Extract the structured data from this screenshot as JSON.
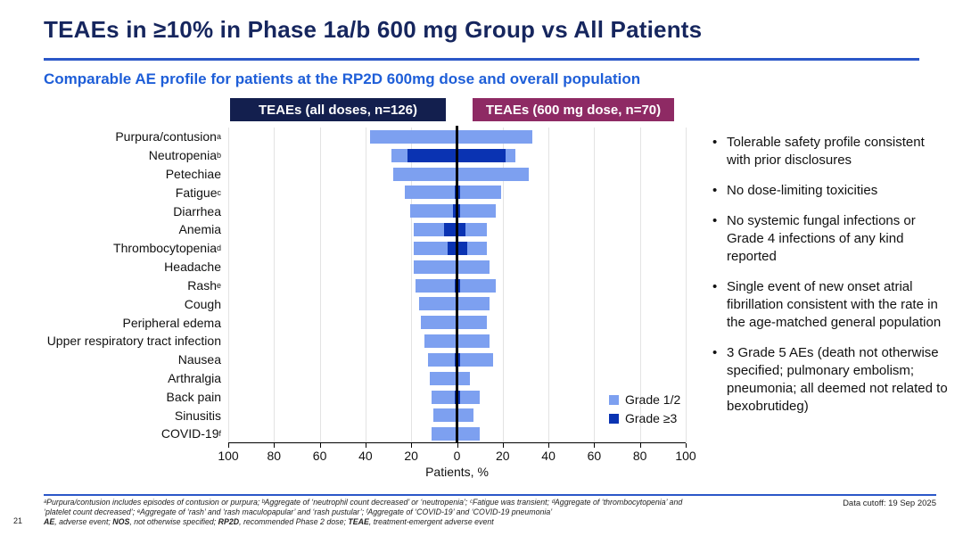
{
  "slide": {
    "title": "TEAEs in ≥10% in Phase 1a/b 600 mg Group vs All Patients",
    "subtitle": "Comparable AE profile for patients at the RP2D 600mg dose and overall population",
    "page_number": "21",
    "data_cutoff": "Data cutoff: 19 Sep 2025"
  },
  "colors": {
    "title_navy": "#16265E",
    "rule_blue": "#2B57C8",
    "subtitle_blue": "#1E5ED8",
    "header_navy": "#131F4E",
    "header_maroon": "#8E2A64",
    "grade12_blue": "#7DA0F0",
    "grade3_blue": "#0A33B2",
    "gridline_gray": "#E3E3E3"
  },
  "chart_data": {
    "type": "bar",
    "subtype": "butterfly",
    "xlabel": "Patients, %",
    "axis_ticks": [
      100,
      80,
      60,
      40,
      20,
      0,
      20,
      40,
      60,
      80,
      100
    ],
    "xlim_each_side": [
      0,
      100
    ],
    "grid": true,
    "series_left_header": "TEAEs (all doses, n=126)",
    "series_right_header": "TEAEs (600 mg dose, n=70)",
    "legend": [
      {
        "label": "Grade 1/2",
        "key": "grade12"
      },
      {
        "label": "Grade ≥3",
        "key": "grade3"
      }
    ],
    "rows": [
      {
        "label": "Purpura/contusion",
        "sup": "a",
        "left_total": 38.1,
        "left_grade3": 0,
        "right_total": 32.9,
        "right_grade3": 0
      },
      {
        "label": "Neutropenia",
        "sup": "b",
        "left_total": 28.6,
        "left_grade3": 21.5,
        "right_total": 25.7,
        "right_grade3": 21.4
      },
      {
        "label": "Petechiae",
        "sup": "",
        "left_total": 27.8,
        "left_grade3": 0,
        "right_total": 31.4,
        "right_grade3": 0
      },
      {
        "label": "Fatigue",
        "sup": "c",
        "left_total": 23.0,
        "left_grade3": 1.0,
        "right_total": 19.2,
        "right_grade3": 1.5
      },
      {
        "label": "Diarrhea",
        "sup": "",
        "left_total": 20.6,
        "left_grade3": 1.6,
        "right_total": 17.1,
        "right_grade3": 1.5
      },
      {
        "label": "Anemia",
        "sup": "",
        "left_total": 19.0,
        "left_grade3": 5.5,
        "right_total": 12.9,
        "right_grade3": 3.8
      },
      {
        "label": "Thrombocytopenia",
        "sup": "d",
        "left_total": 19.0,
        "left_grade3": 4.0,
        "right_total": 12.9,
        "right_grade3": 4.3
      },
      {
        "label": "Headache",
        "sup": "",
        "left_total": 19.0,
        "left_grade3": 0,
        "right_total": 14.3,
        "right_grade3": 0
      },
      {
        "label": "Rash",
        "sup": "e",
        "left_total": 18.3,
        "left_grade3": 0.8,
        "right_total": 17.1,
        "right_grade3": 1.5
      },
      {
        "label": "Cough",
        "sup": "",
        "left_total": 16.7,
        "left_grade3": 0,
        "right_total": 14.3,
        "right_grade3": 0
      },
      {
        "label": "Peripheral edema",
        "sup": "",
        "left_total": 15.9,
        "left_grade3": 0,
        "right_total": 12.9,
        "right_grade3": 0
      },
      {
        "label": "Upper respiratory tract infection",
        "sup": "",
        "left_total": 14.3,
        "left_grade3": 0,
        "right_total": 14.3,
        "right_grade3": 0
      },
      {
        "label": "Nausea",
        "sup": "",
        "left_total": 12.7,
        "left_grade3": 0.8,
        "right_total": 15.7,
        "right_grade3": 1.5
      },
      {
        "label": "Arthralgia",
        "sup": "",
        "left_total": 11.9,
        "left_grade3": 0,
        "right_total": 5.7,
        "right_grade3": 0
      },
      {
        "label": "Back pain",
        "sup": "",
        "left_total": 11.1,
        "left_grade3": 0.8,
        "right_total": 10.0,
        "right_grade3": 1.5
      },
      {
        "label": "Sinusitis",
        "sup": "",
        "left_total": 10.3,
        "left_grade3": 0,
        "right_total": 7.1,
        "right_grade3": 0
      },
      {
        "label": "COVID-19",
        "sup": "f",
        "left_total": 11.1,
        "left_grade3": 0,
        "right_total": 10.0,
        "right_grade3": 0
      }
    ]
  },
  "bullets": [
    "Tolerable safety profile consistent with prior disclosures",
    "No dose-limiting toxicities",
    "No systemic fungal infections or Grade 4 infections of any kind reported",
    "Single event of new onset atrial fibrillation consistent with the rate in the age-matched general population",
    "3 Grade 5 AEs (death not otherwise specified; pulmonary embolism; pneumonia; all deemed not related to bexobrutideg)"
  ],
  "footnotes": {
    "line1": "ᵃPurpura/contusion includes episodes of contusion or purpura; ᵇAggregate of ‘neutrophil count decreased’ or ‘neutropenia’; ᶜFatigue was transient; ᵈAggregate of ‘thrombocytopenia’ and",
    "line2": "‘platelet count decreased’; ᵉAggregate of ‘rash’ and ‘rash maculopapular’ and ‘rash pustular’; ᶠAggregate of ‘COVID-19’ and ‘COVID-19 pneumonia’",
    "abbrev_segments": [
      {
        "text": "AE",
        "bold": true
      },
      {
        "text": ", adverse event; ",
        "bold": false
      },
      {
        "text": "NOS",
        "bold": true
      },
      {
        "text": ", not otherwise specified; ",
        "bold": false
      },
      {
        "text": "RP2D",
        "bold": true
      },
      {
        "text": ", recommended Phase 2 dose; ",
        "bold": false
      },
      {
        "text": "TEAE",
        "bold": true
      },
      {
        "text": ", treatment-emergent adverse event",
        "bold": false
      }
    ]
  }
}
